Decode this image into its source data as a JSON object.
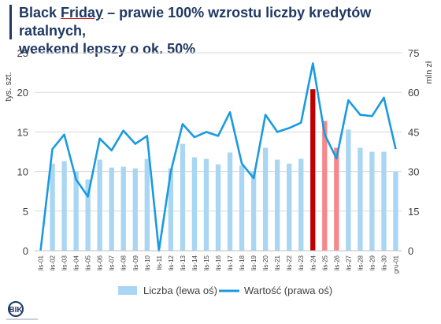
{
  "title": {
    "part1": "Black ",
    "underlined": "Friday",
    "part2": " – prawie 100% wzrostu liczby kredytów ratalnych,",
    "line2": "weekend lepszy o ok. 50%"
  },
  "logo_text": "BIK",
  "chart_data": {
    "type": "bar+line",
    "categories": [
      "lis-01",
      "lis-02",
      "lis-03",
      "lis-04",
      "lis-05",
      "lis-06",
      "lis-07",
      "lis-08",
      "lis-09",
      "lis-10",
      "lis-11",
      "lis-12",
      "lis-13",
      "lis-14",
      "lis-15",
      "lis-16",
      "lis-17",
      "lis-18",
      "lis-19",
      "lis-20",
      "lis-21",
      "lis-22",
      "lis-23",
      "lis-24",
      "lis-25",
      "lis-26",
      "lis-27",
      "lis-28",
      "lis-29",
      "lis-30",
      "gru-01"
    ],
    "series": [
      {
        "name": "Liczba (lewa oś)",
        "axis": "left",
        "type": "bar",
        "color": "#a9d6f2",
        "values": [
          0,
          11.0,
          11.3,
          10.0,
          9.0,
          11.5,
          10.5,
          10.6,
          10.4,
          11.6,
          0,
          10.4,
          13.5,
          11.8,
          11.6,
          10.9,
          12.4,
          10.8,
          10.0,
          13.0,
          11.5,
          11.0,
          11.6,
          20.4,
          16.4,
          13.0,
          15.3,
          13.0,
          12.5,
          12.5,
          10.0
        ],
        "highlight": {
          "lis-24": "#c00000",
          "lis-25": "#f4888c",
          "lis-26": "#f4888c"
        }
      },
      {
        "name": "Wartość (prawa oś)",
        "axis": "right",
        "type": "line",
        "color": "#1a9ae0",
        "values": [
          0,
          38.5,
          44,
          27,
          20.5,
          42.5,
          38,
          45.5,
          40.5,
          43.5,
          0,
          30,
          48,
          43,
          45,
          43.5,
          52.5,
          33,
          27.5,
          51.5,
          45,
          46.5,
          48.5,
          71,
          44,
          35,
          57,
          51.5,
          51,
          58,
          38.5
        ]
      }
    ],
    "yaxis_left": {
      "label": "tys. szt.",
      "ticks": [
        0,
        5,
        10,
        15,
        20,
        25
      ],
      "min": 0,
      "max": 25
    },
    "yaxis_right": {
      "label": "mln zł",
      "ticks": [
        0,
        15,
        30,
        45,
        60,
        75
      ],
      "min": 0,
      "max": 75
    },
    "grid": true,
    "legend": "bottom"
  }
}
